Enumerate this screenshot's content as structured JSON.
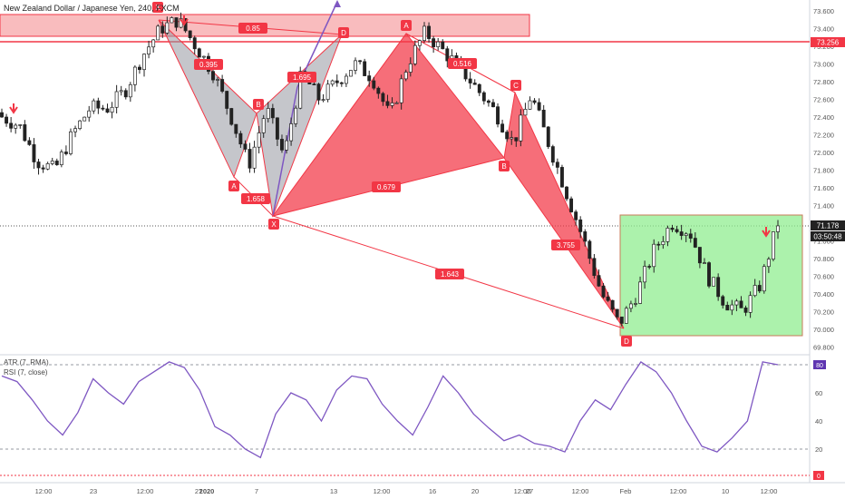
{
  "header": {
    "symbol_title": "New Zealand Dollar / Japanese Yen, 240, FXCM"
  },
  "indicators": {
    "atr_label": "ATR (7, RMA)",
    "rsi_label": "RSI (7, close)"
  },
  "price_axis": {
    "ticks": [
      "73.600",
      "73.400",
      "73.200",
      "73.000",
      "72.800",
      "72.600",
      "72.400",
      "72.200",
      "72.000",
      "71.800",
      "71.600",
      "71.400",
      "71.200",
      "71.000",
      "70.800",
      "70.600",
      "70.400",
      "70.200",
      "70.000",
      "69.800"
    ],
    "resistance_badge": "73.256",
    "last_price_badge": "71.178",
    "countdown_badge": "03:50:48"
  },
  "rsi_axis": {
    "ticks": [
      "60",
      "40",
      "20"
    ],
    "current_badge": "80",
    "atr_badge": "0"
  },
  "time_axis": [
    "12:00",
    "23",
    "12:00",
    "27",
    "2020",
    "7",
    "13",
    "12:00",
    "16",
    "20",
    "12:00",
    "27",
    "12:00",
    "Feb",
    "12:00",
    "10",
    "12:00"
  ],
  "patterns": {
    "bat_left": {
      "x": "X",
      "a": "A",
      "b": "B",
      "d": "D",
      "r_xa": "0.395",
      "r_ab": "1.658",
      "r_bc": "1.695",
      "r_xd": "0.85"
    },
    "bat_main": {
      "x": "X",
      "a": "A",
      "b": "B",
      "c": "C",
      "d": "D",
      "r_xb": "0.679",
      "r_ac": "0.516",
      "r_bd": "3.755",
      "r_xd": "1.643"
    }
  },
  "colors": {
    "up": "#26a69a",
    "down": "#222222",
    "pattern_red": "#f23645",
    "pattern_grey": "#9598a1",
    "zone_green": "#90ee90",
    "rsi_line": "#7e57c2"
  },
  "chart_data": {
    "type": "candlestick",
    "title": "New Zealand Dollar / Japanese Yen, 240, FXCM",
    "ylim": [
      69.75,
      73.7
    ],
    "key_levels": {
      "resistance": 73.256,
      "last_price": 71.178
    },
    "close_path": [
      72.4,
      72.3,
      71.9,
      71.8,
      72.2,
      72.5,
      72.5,
      72.7,
      73.1,
      73.4,
      73.5,
      73.2,
      72.9,
      72.4,
      71.85,
      72.5,
      71.95,
      72.9,
      72.6,
      72.8,
      73.0,
      72.85,
      72.4,
      73.0,
      73.36,
      73.15,
      72.95,
      72.7,
      72.45,
      72.1,
      72.65,
      72.1,
      71.55,
      71.0,
      70.4,
      70.05,
      70.4,
      70.9,
      71.2,
      71.1,
      70.6,
      70.3,
      70.2,
      70.5,
      71.2
    ],
    "rsi_ylim": [
      0,
      100
    ],
    "rsi_values": [
      72,
      68,
      55,
      40,
      30,
      46,
      70,
      60,
      52,
      68,
      75,
      82,
      78,
      62,
      36,
      30,
      20,
      14,
      45,
      60,
      55,
      40,
      62,
      72,
      70,
      52,
      40,
      30,
      50,
      72,
      60,
      45,
      35,
      26,
      30,
      24,
      22,
      18,
      40,
      55,
      48,
      66,
      82,
      75,
      60,
      40,
      22,
      18,
      28,
      40,
      82,
      80
    ]
  }
}
